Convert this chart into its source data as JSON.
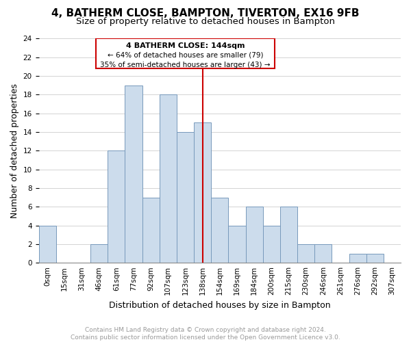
{
  "title": "4, BATHERM CLOSE, BAMPTON, TIVERTON, EX16 9FB",
  "subtitle": "Size of property relative to detached houses in Bampton",
  "xlabel": "Distribution of detached houses by size in Bampton",
  "ylabel": "Number of detached properties",
  "footer_line1": "Contains HM Land Registry data © Crown copyright and database right 2024.",
  "footer_line2": "Contains public sector information licensed under the Open Government Licence v3.0.",
  "bin_labels": [
    "0sqm",
    "15sqm",
    "31sqm",
    "46sqm",
    "61sqm",
    "77sqm",
    "92sqm",
    "107sqm",
    "123sqm",
    "138sqm",
    "154sqm",
    "169sqm",
    "184sqm",
    "200sqm",
    "215sqm",
    "230sqm",
    "246sqm",
    "261sqm",
    "276sqm",
    "292sqm",
    "307sqm"
  ],
  "bar_values": [
    4,
    0,
    0,
    2,
    12,
    19,
    7,
    18,
    14,
    15,
    7,
    4,
    6,
    4,
    6,
    2,
    2,
    0,
    1,
    1,
    0
  ],
  "bar_color": "#ccdcec",
  "bar_edge_color": "#7799bb",
  "annotation_text_line1": "4 BATHERM CLOSE: 144sqm",
  "annotation_text_line2": "← 64% of detached houses are smaller (79)",
  "annotation_text_line3": "35% of semi-detached houses are larger (43) →",
  "annotation_box_edge": "#cc0000",
  "annotation_box_bg": "#ffffff",
  "vline_color": "#cc0000",
  "vline_x": 9.5,
  "ylim": [
    0,
    24
  ],
  "yticks": [
    0,
    2,
    4,
    6,
    8,
    10,
    12,
    14,
    16,
    18,
    20,
    22,
    24
  ],
  "grid_color": "#cccccc",
  "bg_color": "#ffffff",
  "title_fontsize": 11,
  "subtitle_fontsize": 9.5,
  "axis_label_fontsize": 9,
  "tick_fontsize": 7.5,
  "footer_fontsize": 6.5
}
